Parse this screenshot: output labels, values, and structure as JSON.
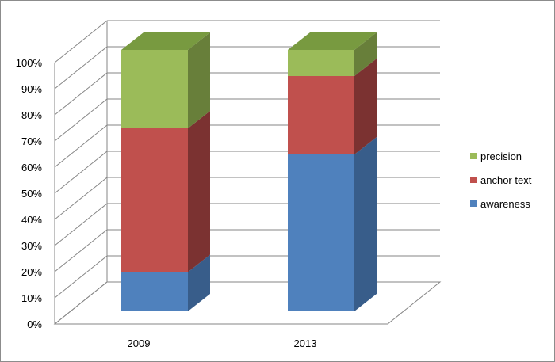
{
  "chart_data": {
    "type": "bar",
    "stacked": true,
    "stack_mode": "percent",
    "three_d": true,
    "categories": [
      "2009",
      "2013"
    ],
    "series": [
      {
        "name": "awareness",
        "values": [
          15,
          60
        ],
        "color": "#4F81BD",
        "side_color": "#385D8A",
        "top_color": "#5F8FC8"
      },
      {
        "name": "anchor text",
        "values": [
          55,
          30
        ],
        "color": "#C0504D",
        "side_color": "#7B3231",
        "top_color": "#A64441"
      },
      {
        "name": "precision",
        "values": [
          30,
          10
        ],
        "color": "#9BBB59",
        "side_color": "#687F3A",
        "top_color": "#789A40"
      }
    ],
    "y_ticks": [
      "0%",
      "10%",
      "20%",
      "30%",
      "40%",
      "50%",
      "60%",
      "70%",
      "80%",
      "90%",
      "100%"
    ],
    "ylim": [
      0,
      100
    ],
    "grid": true,
    "legend_position": "right",
    "title": "",
    "xlabel": "",
    "ylabel": ""
  }
}
